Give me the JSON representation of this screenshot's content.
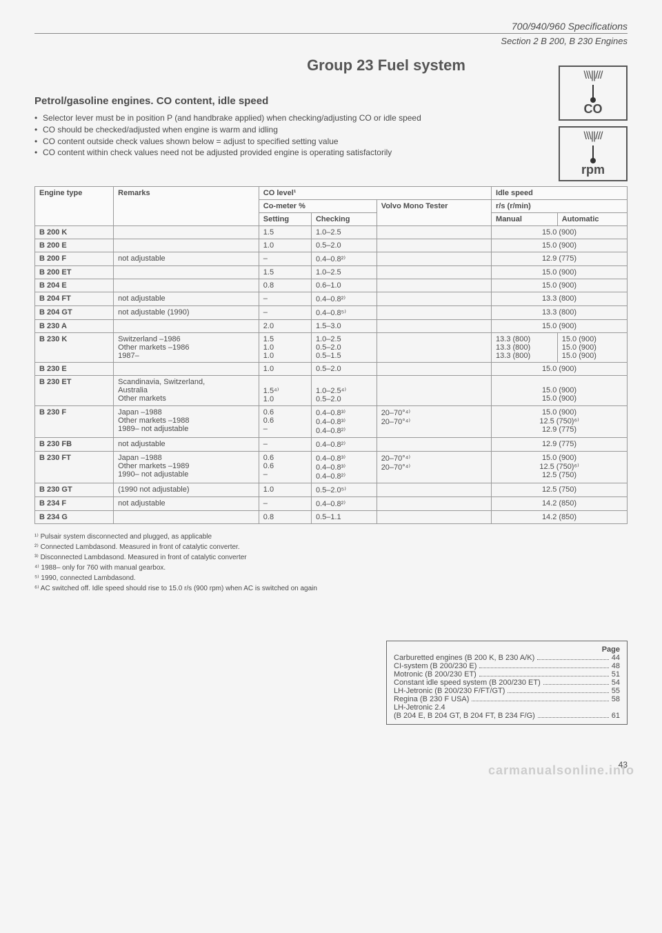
{
  "header": {
    "spec": "700/940/960 Specifications",
    "section": "Section 2 B 200, B 230 Engines"
  },
  "title": "Group 23 Fuel system",
  "gauges": {
    "co": "CO",
    "rpm": "rpm",
    "ticks": "\\\\\\||///"
  },
  "section_title": "Petrol/gasoline engines. CO content, idle speed",
  "bullets": [
    "Selector lever must be in position P (and handbrake applied) when checking/adjusting CO or idle speed",
    "CO should be checked/adjusted when engine is warm and idling",
    "CO content outside check values shown below = adjust to specified setting value",
    "CO content within check values need not be adjusted provided engine is operating satisfactorily"
  ],
  "table": {
    "headers": {
      "engine": "Engine type",
      "remarks": "Remarks",
      "co_level": "CO level¹",
      "co_meter": "Co-meter %",
      "setting": "Setting",
      "checking": "Checking",
      "volvo": "Volvo Mono Tester",
      "idle": "Idle speed",
      "rs": "r/s (r/min)",
      "manual": "Manual",
      "automatic": "Automatic"
    },
    "rows": [
      {
        "engine": "B 200 K",
        "remarks": "",
        "setting": "1.5",
        "checking": "1.0–2.5",
        "volvo": "",
        "manual": "15.0 (900)",
        "automatic": ""
      },
      {
        "engine": "B 200 E",
        "remarks": "",
        "setting": "1.0",
        "checking": "0.5–2.0",
        "volvo": "",
        "manual": "15.0 (900)",
        "automatic": ""
      },
      {
        "engine": "B 200 F",
        "remarks": "not adjustable",
        "setting": "–",
        "checking": "0.4–0.8²⁾",
        "volvo": "",
        "manual": "12.9 (775)",
        "automatic": ""
      },
      {
        "engine": "B 200 ET",
        "remarks": "",
        "setting": "1.5",
        "checking": "1.0–2.5",
        "volvo": "",
        "manual": "15.0 (900)",
        "automatic": ""
      },
      {
        "engine": "B 204 E",
        "remarks": "",
        "setting": "0.8",
        "checking": "0.6–1.0",
        "volvo": "",
        "manual": "15.0 (900)",
        "automatic": ""
      },
      {
        "engine": "B 204 FT",
        "remarks": "not adjustable",
        "setting": "–",
        "checking": "0.4–0.8²⁾",
        "volvo": "",
        "manual": "13.3 (800)",
        "automatic": ""
      },
      {
        "engine": "B 204 GT",
        "remarks": "not adjustable (1990)",
        "setting": "–",
        "checking": "0.4–0.8⁵⁾",
        "volvo": "",
        "manual": "13.3 (800)",
        "automatic": ""
      },
      {
        "engine": "B 230 A",
        "remarks": "",
        "setting": "2.0",
        "checking": "1.5–3.0",
        "volvo": "",
        "manual": "15.0 (900)",
        "automatic": ""
      },
      {
        "engine": "B 230 K",
        "remarks": "Switzerland –1986\nOther markets –1986\n1987–",
        "setting": "1.5\n1.0\n1.0",
        "checking": "1.0–2.5\n0.5–2.0\n0.5–1.5",
        "volvo": "",
        "manual": "13.3 (800)\n13.3 (800)\n13.3 (800)",
        "automatic": "15.0 (900)\n15.0 (900)\n15.0 (900)"
      },
      {
        "engine": "B 230 E",
        "remarks": "",
        "setting": "1.0",
        "checking": "0.5–2.0",
        "volvo": "",
        "manual": "15.0 (900)",
        "automatic": ""
      },
      {
        "engine": "B 230 ET",
        "remarks": "Scandinavia, Switzerland,\nAustralia\nOther markets",
        "setting": "\n1.5⁴⁾\n1.0",
        "checking": "\n1.0–2.5⁴⁾\n0.5–2.0",
        "volvo": "",
        "manual": "\n15.0 (900)\n15.0 (900)",
        "automatic": ""
      },
      {
        "engine": "B 230 F",
        "remarks": "Japan –1988\nOther markets –1988\n1989– not adjustable",
        "setting": "0.6\n0.6\n–",
        "checking": "0.4–0.8³⁾\n0.4–0.8³⁾\n0.4–0.8²⁾",
        "volvo": "20–70°⁴⁾\n20–70°⁴⁾",
        "manual": "15.0 (900)\n12.5 (750)⁶⁾\n12.9 (775)",
        "automatic": ""
      },
      {
        "engine": "B 230 FB",
        "remarks": "not adjustable",
        "setting": "–",
        "checking": "0.4–0.8²⁾",
        "volvo": "",
        "manual": "12.9 (775)",
        "automatic": ""
      },
      {
        "engine": "B 230 FT",
        "remarks": "Japan –1988\nOther markets –1989\n1990– not adjustable",
        "setting": "0.6\n0.6\n–",
        "checking": "0.4–0.8³⁾\n0.4–0.8³⁾\n0.4–0.8²⁾",
        "volvo": "20–70°⁴⁾\n20–70°⁴⁾",
        "manual": "15.0 (900)\n12.5 (750)⁶⁾\n12.5 (750)",
        "automatic": ""
      },
      {
        "engine": "B 230 GT",
        "remarks": "(1990 not adjustable)",
        "setting": "1.0",
        "checking": "0.5–2.0⁵⁾",
        "volvo": "",
        "manual": "12.5 (750)",
        "automatic": ""
      },
      {
        "engine": "B 234 F",
        "remarks": "not adjustable",
        "setting": "–",
        "checking": "0.4–0.8²⁾",
        "volvo": "",
        "manual": "14.2 (850)",
        "automatic": ""
      },
      {
        "engine": "B 234 G",
        "remarks": "",
        "setting": "0.8",
        "checking": "0.5–1.1",
        "volvo": "",
        "manual": "14.2 (850)",
        "automatic": ""
      }
    ]
  },
  "footnotes": [
    "¹⁾ Pulsair system disconnected and plugged, as applicable",
    "²⁾ Connected Lambdasond. Measured in front of catalytic converter.",
    "³⁾ Disconnected Lambdasond. Measured in front of catalytic converter",
    "⁴⁾ 1988– only for 760 with manual gearbox.",
    "⁵⁾ 1990, connected Lambdasond.",
    "⁶⁾ AC switched off. Idle speed should rise to 15.0 r/s (900 rpm) when AC is switched on again"
  ],
  "pagebox": {
    "header": "Page",
    "items": [
      {
        "label": "Carburetted engines (B 200 K, B 230 A/K)",
        "page": "44"
      },
      {
        "label": "CI-system (B 200/230 E)",
        "page": "48"
      },
      {
        "label": "Motronic (B 200/230 ET)",
        "page": "51"
      },
      {
        "label": "Constant idle speed system (B 200/230 ET)",
        "page": "54"
      },
      {
        "label": "LH-Jetronic (B 200/230 F/FT/GT)",
        "page": "55"
      },
      {
        "label": "Regina (B 230 F USA)",
        "page": "58"
      },
      {
        "label": "LH-Jetronic 2.4",
        "page": ""
      },
      {
        "label": "(B 204 E, B 204 GT, B 204 FT, B 234 F/G)",
        "page": "61"
      }
    ]
  },
  "pagenum": "43",
  "watermark": "carmanualsonline.info"
}
